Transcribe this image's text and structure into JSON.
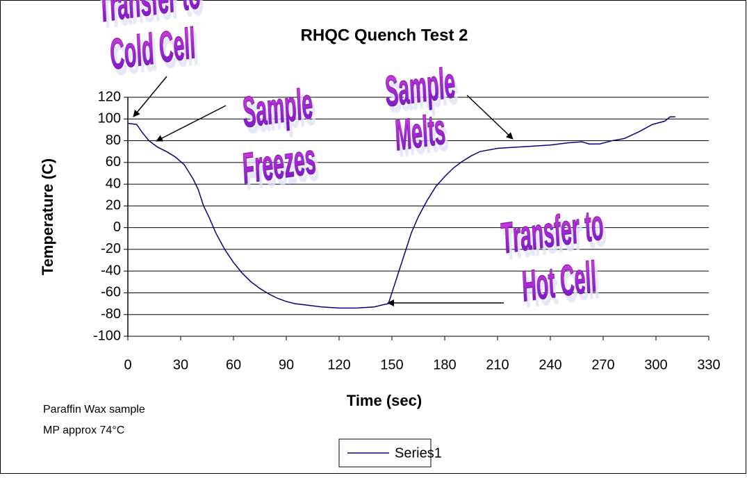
{
  "chart_data": {
    "type": "line",
    "title": "RHQC Quench Test 2",
    "x_label": "Time (sec)",
    "y_label": "Temperature (C)",
    "x": [
      0,
      5,
      8,
      12,
      17,
      22,
      27,
      32,
      37,
      40,
      43,
      46,
      50,
      55,
      60,
      65,
      70,
      75,
      80,
      85,
      90,
      95,
      100,
      110,
      120,
      130,
      140,
      145,
      148,
      150,
      153,
      157,
      161,
      165,
      170,
      175,
      180,
      185,
      190,
      195,
      200,
      210,
      220,
      230,
      240,
      250,
      258,
      262,
      268,
      275,
      282,
      290,
      298,
      305,
      308,
      311
    ],
    "series": [
      {
        "name": "Series1",
        "color": "#000080",
        "values": [
          96,
          95,
          88,
          80,
          74,
          70,
          65,
          58,
          45,
          35,
          20,
          10,
          -5,
          -20,
          -32,
          -42,
          -50,
          -56,
          -61,
          -65,
          -68,
          -70,
          -71,
          -73,
          -74,
          -74,
          -73,
          -71,
          -70,
          -60,
          -45,
          -25,
          -5,
          10,
          25,
          38,
          47,
          55,
          61,
          66,
          70,
          73,
          74,
          75,
          76,
          78,
          79,
          77,
          77,
          80,
          82,
          88,
          95,
          98,
          102,
          102
        ]
      }
    ],
    "xlim": [
      0,
      330
    ],
    "xticks": [
      0,
      30,
      60,
      90,
      120,
      150,
      180,
      210,
      240,
      270,
      300,
      330
    ],
    "ylim": [
      -100,
      120
    ],
    "yticks": [
      -100,
      -80,
      -60,
      -40,
      -20,
      0,
      20,
      40,
      60,
      80,
      100,
      120
    ],
    "grid": true,
    "legend": "bottom",
    "annotations": [
      {
        "lines": [
          "Transfer to",
          "Cold Cell"
        ]
      },
      {
        "lines": [
          "Sample",
          "Freezes"
        ]
      },
      {
        "lines": [
          "Sample",
          "Melts"
        ]
      },
      {
        "lines": [
          "Transfer to",
          "Hot Cell"
        ]
      }
    ],
    "notes": [
      "Paraffin Wax sample",
      "MP approx 74°C"
    ]
  }
}
